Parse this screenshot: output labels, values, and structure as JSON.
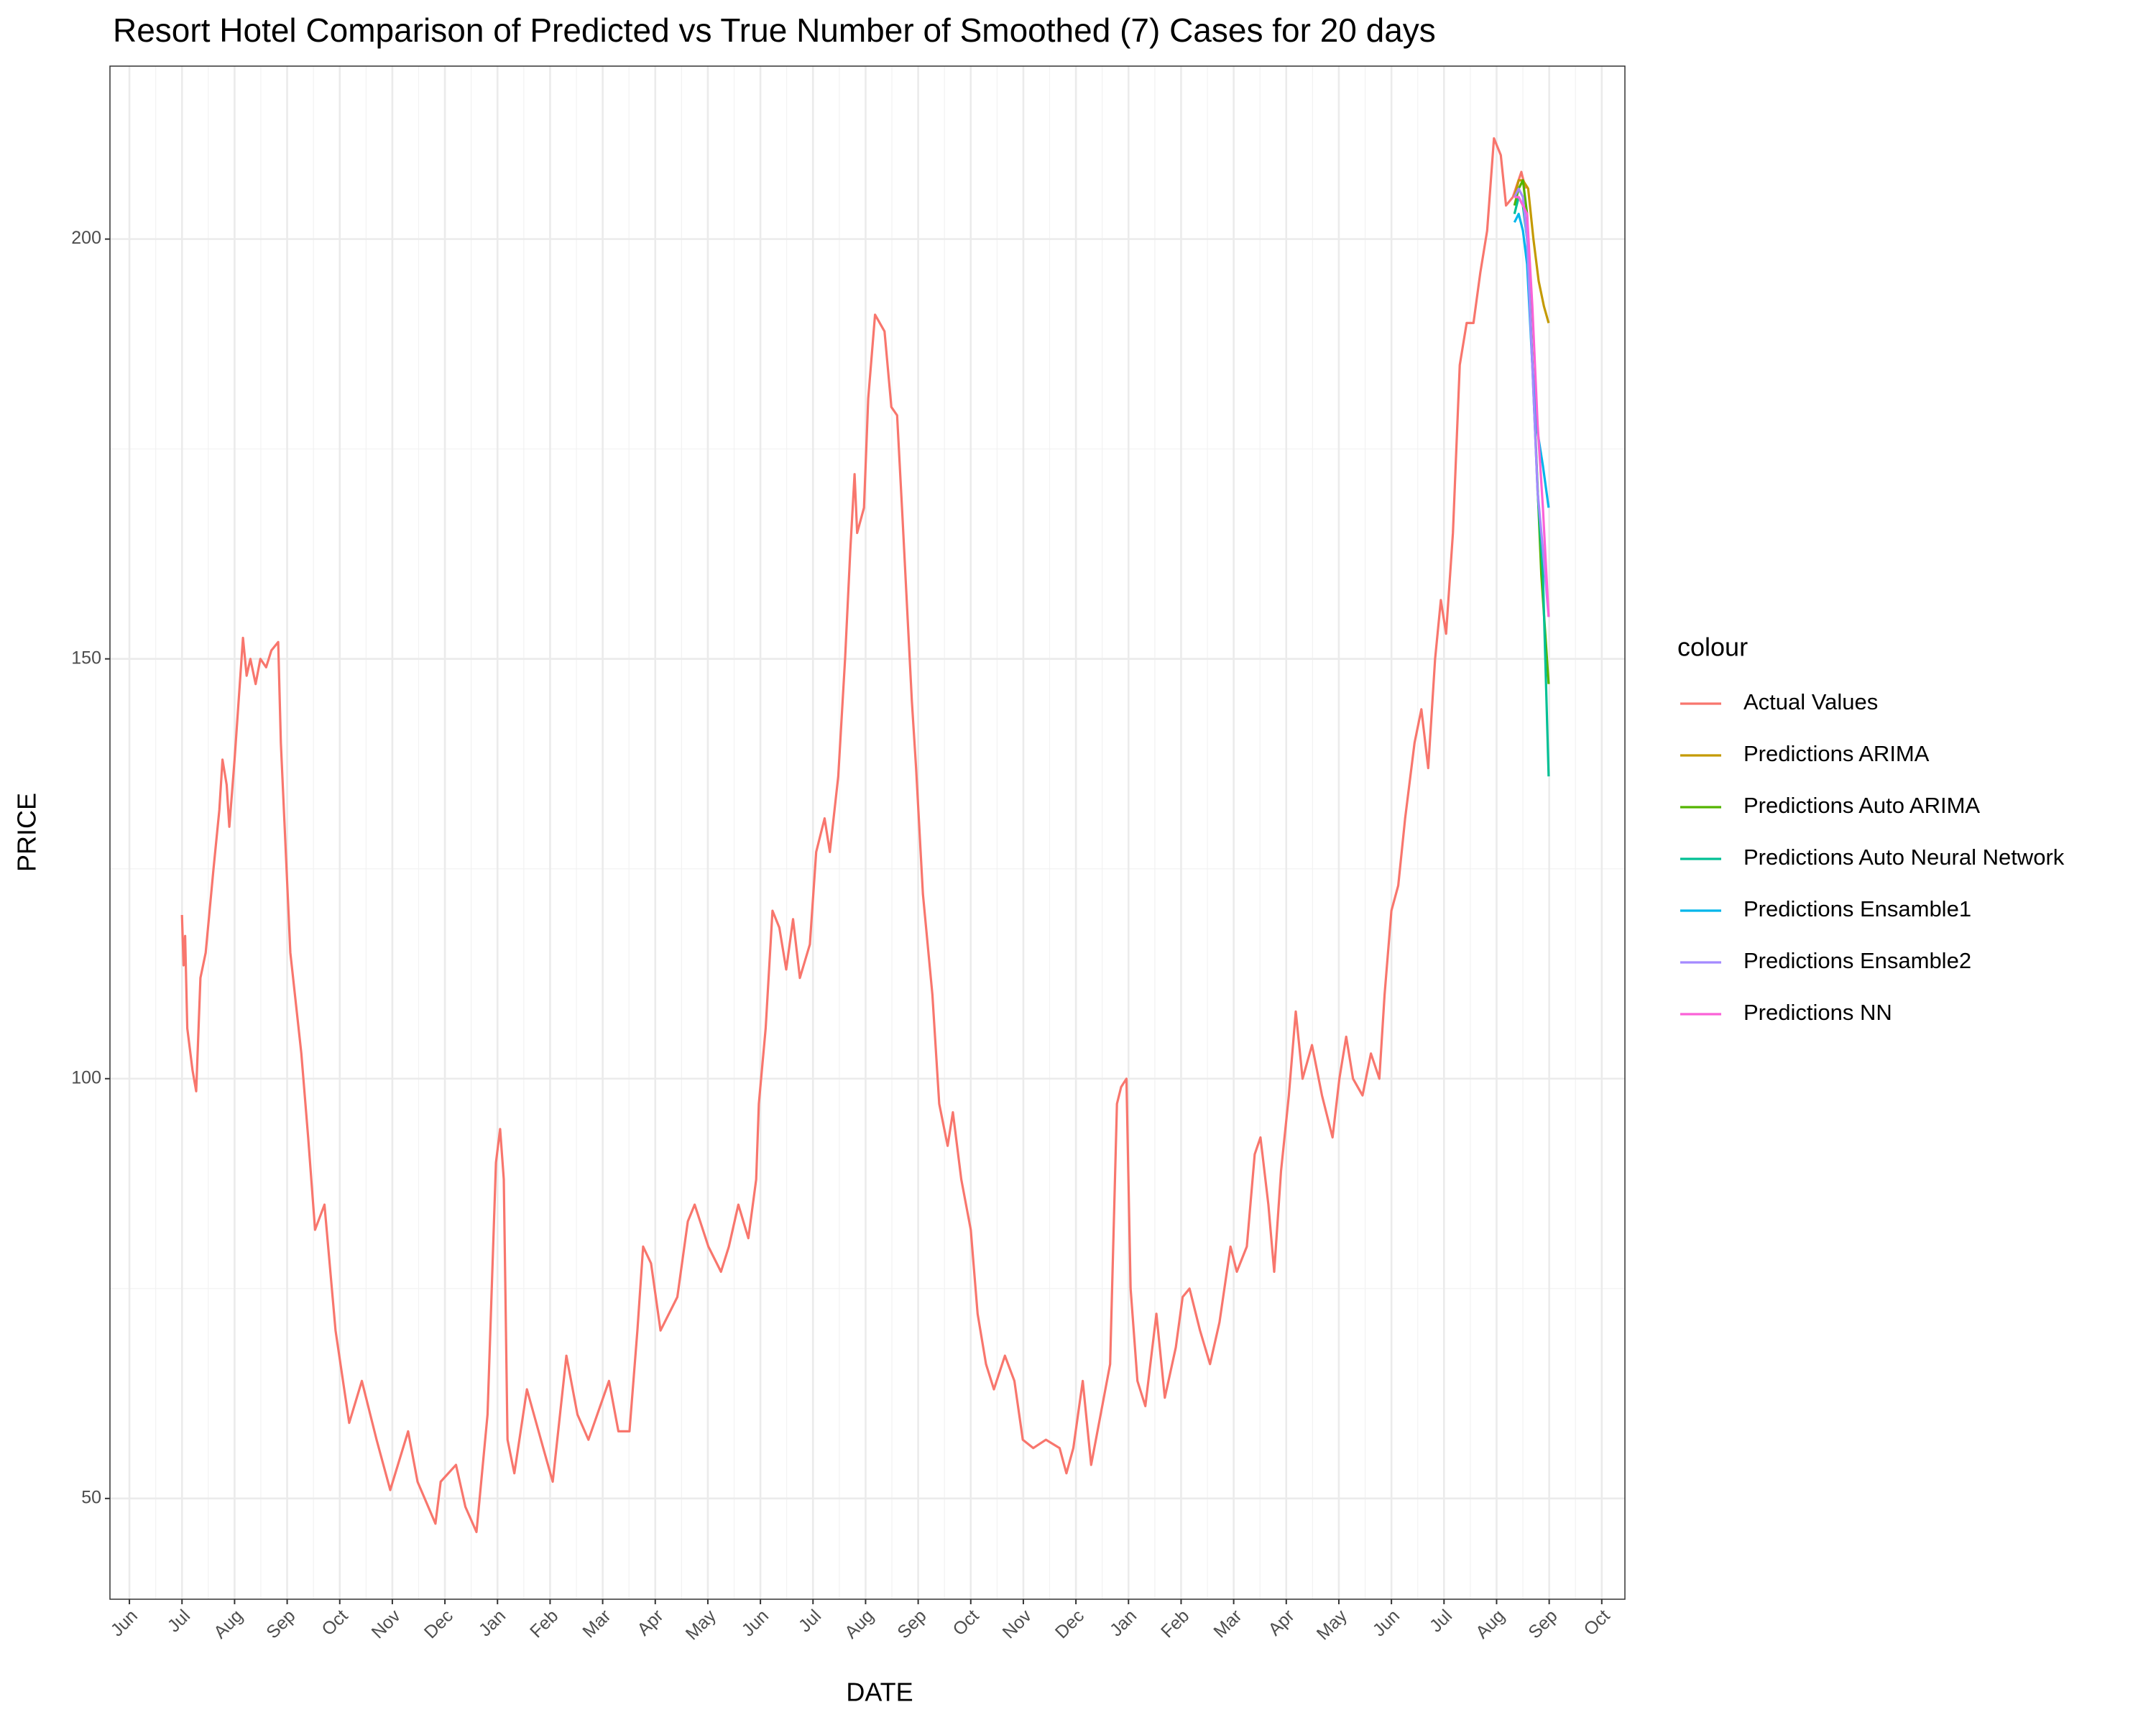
{
  "chart_data": {
    "type": "line",
    "title": "Resort Hotel Comparison of Predicted vs True Number of Smoothed (7) Cases for 20 days",
    "x_label": "DATE",
    "y_label": "PRICE",
    "legend_title": "colour",
    "legend_position": "right",
    "grid": true,
    "xlim": [
      -0.37,
      28.44
    ],
    "ylim": [
      38,
      220.6
    ],
    "xticks": [
      {
        "value": 0,
        "label": "Jun"
      },
      {
        "value": 1,
        "label": "Jul"
      },
      {
        "value": 2,
        "label": "Aug"
      },
      {
        "value": 3,
        "label": "Sep"
      },
      {
        "value": 4,
        "label": "Oct"
      },
      {
        "value": 5,
        "label": "Nov"
      },
      {
        "value": 6,
        "label": "Dec"
      },
      {
        "value": 7,
        "label": "Jan"
      },
      {
        "value": 8,
        "label": "Feb"
      },
      {
        "value": 9,
        "label": "Mar"
      },
      {
        "value": 10,
        "label": "Apr"
      },
      {
        "value": 11,
        "label": "May"
      },
      {
        "value": 12,
        "label": "Jun"
      },
      {
        "value": 13,
        "label": "Jul"
      },
      {
        "value": 14,
        "label": "Aug"
      },
      {
        "value": 15,
        "label": "Sep"
      },
      {
        "value": 16,
        "label": "Oct"
      },
      {
        "value": 17,
        "label": "Nov"
      },
      {
        "value": 18,
        "label": "Dec"
      },
      {
        "value": 19,
        "label": "Jan"
      },
      {
        "value": 20,
        "label": "Feb"
      },
      {
        "value": 21,
        "label": "Mar"
      },
      {
        "value": 22,
        "label": "Apr"
      },
      {
        "value": 23,
        "label": "May"
      },
      {
        "value": 24,
        "label": "Jun"
      },
      {
        "value": 25,
        "label": "Jul"
      },
      {
        "value": 26,
        "label": "Aug"
      },
      {
        "value": 27,
        "label": "Sep"
      },
      {
        "value": 28,
        "label": "Oct"
      }
    ],
    "yticks": [
      50,
      100,
      150,
      200
    ],
    "series": [
      {
        "name": "Actual Values",
        "color": "#F8766D",
        "x": [
          1.0,
          1.03,
          1.06,
          1.1,
          1.2,
          1.27,
          1.35,
          1.45,
          1.6,
          1.71,
          1.77,
          1.85,
          1.9,
          2.0,
          2.16,
          2.23,
          2.3,
          2.4,
          2.49,
          2.6,
          2.7,
          2.83,
          2.88,
          3.06,
          3.27,
          3.4,
          3.53,
          3.71,
          3.92,
          4.18,
          4.42,
          4.7,
          4.96,
          5.3,
          5.48,
          5.82,
          5.92,
          6.21,
          6.39,
          6.6,
          6.81,
          6.97,
          7.05,
          7.12,
          7.19,
          7.32,
          7.56,
          7.87,
          8.05,
          8.31,
          8.52,
          8.73,
          9.12,
          9.3,
          9.51,
          9.66,
          9.77,
          9.92,
          10.1,
          10.42,
          10.62,
          10.75,
          11.01,
          11.25,
          11.4,
          11.58,
          11.77,
          11.92,
          11.97,
          12.1,
          12.23,
          12.36,
          12.49,
          12.62,
          12.75,
          12.94,
          13.06,
          13.22,
          13.32,
          13.48,
          13.61,
          13.71,
          13.79,
          13.84,
          13.97,
          14.05,
          14.18,
          14.36,
          14.49,
          14.6,
          14.7,
          14.88,
          14.96,
          15.09,
          15.27,
          15.4,
          15.56,
          15.66,
          15.82,
          16.0,
          16.13,
          16.29,
          16.44,
          16.65,
          16.83,
          16.99,
          17.19,
          17.43,
          17.69,
          17.82,
          17.95,
          18.13,
          18.29,
          18.47,
          18.65,
          18.78,
          18.86,
          18.96,
          19.04,
          19.17,
          19.32,
          19.53,
          19.69,
          19.9,
          20.03,
          20.16,
          20.36,
          20.55,
          20.73,
          20.94,
          21.06,
          21.25,
          21.4,
          21.51,
          21.66,
          21.77,
          21.9,
          22.05,
          22.18,
          22.31,
          22.49,
          22.68,
          22.88,
          23.01,
          23.14,
          23.27,
          23.45,
          23.61,
          23.77,
          23.87,
          24.0,
          24.13,
          24.26,
          24.44,
          24.57,
          24.7,
          24.83,
          24.94,
          25.04,
          25.17,
          25.3,
          25.43,
          25.56,
          25.69,
          25.82,
          25.95,
          26.08,
          26.18,
          26.31,
          26.47,
          26.55
        ],
        "values": [
          119.5,
          113.5,
          117,
          106,
          101,
          98.5,
          112,
          115,
          125,
          132,
          138,
          135,
          130,
          138,
          152.5,
          148,
          150,
          147,
          150,
          149,
          151,
          152,
          140,
          115,
          103,
          93,
          82,
          85,
          70,
          59,
          64,
          57,
          51,
          58,
          52,
          47,
          52,
          54,
          49,
          46,
          60,
          90,
          94,
          88,
          57,
          53,
          63,
          56,
          52,
          67,
          60,
          57,
          64,
          58,
          58,
          70,
          80,
          78,
          70,
          74,
          83,
          85,
          80,
          77,
          80,
          85,
          81,
          88,
          97,
          106,
          120,
          118,
          113,
          119,
          112,
          116,
          127,
          131,
          127,
          136,
          150,
          163,
          172,
          165,
          168,
          181,
          191,
          189,
          180,
          179,
          167,
          145,
          137,
          122,
          110,
          97,
          92,
          96,
          88,
          82,
          72,
          66,
          63,
          67,
          64,
          57,
          56,
          57,
          56,
          53,
          56,
          64,
          54,
          60,
          66,
          97,
          99,
          100,
          75,
          64,
          61,
          72,
          62,
          68,
          74,
          75,
          70,
          66,
          71,
          80,
          77,
          80,
          91,
          93,
          85,
          77,
          89,
          98,
          108,
          100,
          104,
          98,
          93,
          100,
          105,
          100,
          98,
          103,
          100,
          110,
          120,
          123,
          131,
          140,
          144,
          137,
          150,
          157,
          153,
          165,
          185,
          190,
          190,
          196,
          201,
          212,
          210,
          204,
          205,
          208,
          206
        ]
      },
      {
        "name": "Predictions ARIMA",
        "color": "#C49A00",
        "x": [
          26.34,
          26.42,
          26.5,
          26.6,
          26.7,
          26.8,
          26.9,
          26.99
        ],
        "values": [
          205,
          207,
          207,
          206,
          200,
          195,
          192,
          190
        ]
      },
      {
        "name": "Predictions Auto ARIMA",
        "color": "#53B400",
        "x": [
          26.34,
          26.42,
          26.5,
          26.58,
          26.65,
          26.75,
          26.85,
          26.99
        ],
        "values": [
          204,
          206,
          207,
          203,
          190,
          175,
          160,
          147
        ]
      },
      {
        "name": "Predictions Auto Neural Network",
        "color": "#00C094",
        "x": [
          26.34,
          26.42,
          26.5,
          26.58,
          26.68,
          26.78,
          26.88,
          26.99
        ],
        "values": [
          203,
          205,
          204,
          200,
          185,
          170,
          160,
          136
        ]
      },
      {
        "name": "Predictions Ensamble1",
        "color": "#00B6EB",
        "x": [
          26.34,
          26.42,
          26.5,
          26.58,
          26.68,
          26.78,
          26.88,
          26.99
        ],
        "values": [
          202,
          203,
          201,
          197,
          185,
          177,
          173,
          168
        ]
      },
      {
        "name": "Predictions Ensamble2",
        "color": "#A58AFF",
        "x": [
          26.34,
          26.42,
          26.5,
          26.58,
          26.68,
          26.78,
          26.88,
          26.99
        ],
        "values": [
          205,
          206,
          205,
          200,
          185,
          170,
          163,
          155
        ]
      },
      {
        "name": "Predictions NN",
        "color": "#FB61D7",
        "x": [
          26.34,
          26.42,
          26.5,
          26.58,
          26.68,
          26.78,
          26.88,
          26.99
        ],
        "values": [
          205,
          205,
          204,
          203,
          192,
          178,
          168,
          155
        ]
      }
    ]
  }
}
